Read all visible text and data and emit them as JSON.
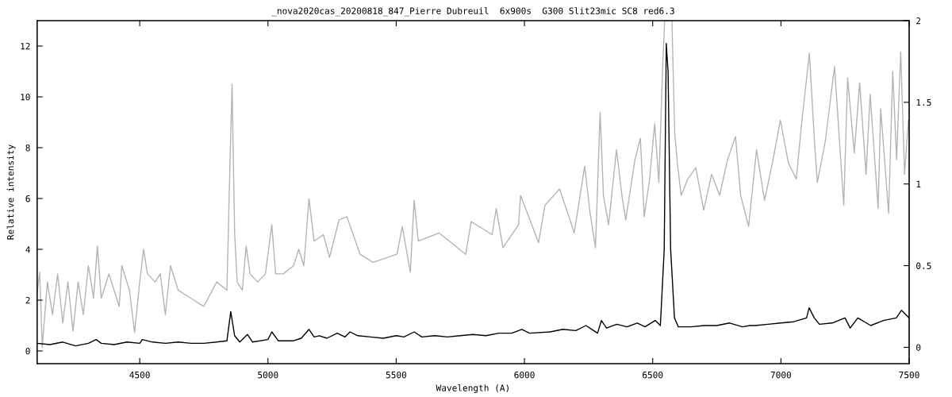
{
  "chart_data": {
    "type": "line",
    "title": "_nova2020cas_20200818_847_Pierre Dubreuil  6x900s  G300 Slit23mic SC8 red6.3",
    "xlabel": "Wavelength (A)",
    "ylabel": "Relative intensity",
    "xlim": [
      4100,
      7500
    ],
    "xticks": [
      4500,
      5000,
      5500,
      6000,
      6500,
      7000,
      7500
    ],
    "ylim": [
      -0.5,
      13
    ],
    "yticks": [
      0,
      2,
      4,
      6,
      8,
      10,
      12
    ],
    "y2lim": [
      -0.1,
      2
    ],
    "y2ticks": [
      0,
      0.5,
      1,
      1.5,
      2
    ],
    "grid": false,
    "marker": "none",
    "line_style": "solid",
    "series": [
      {
        "color": "#b4b4b4",
        "axis": "y2",
        "x": [
          4100,
          4110,
          4120,
          4140,
          4160,
          4180,
          4200,
          4220,
          4240,
          4260,
          4280,
          4300,
          4320,
          4335,
          4350,
          4380,
          4400,
          4420,
          4430,
          4460,
          4480,
          4500,
          4515,
          4530,
          4560,
          4580,
          4600,
          4620,
          4650,
          4700,
          4750,
          4800,
          4840,
          4850,
          4860,
          4870,
          4880,
          4900,
          4915,
          4930,
          4960,
          4990,
          5015,
          5030,
          5060,
          5100,
          5120,
          5140,
          5160,
          5180,
          5216,
          5240,
          5277,
          5308,
          5359,
          5410,
          5503,
          5524,
          5555,
          5570,
          5586,
          5668,
          5771,
          5792,
          5874,
          5890,
          5916,
          5977,
          5985,
          6029,
          6055,
          6080,
          6137,
          6184,
          6194,
          6235,
          6256,
          6277,
          6295,
          6308,
          6328,
          6359,
          6380,
          6395,
          6431,
          6452,
          6467,
          6488,
          6508,
          6524,
          6539,
          6547,
          6565,
          6575,
          6586,
          6596,
          6611,
          6637,
          6668,
          6699,
          6730,
          6761,
          6792,
          6823,
          6843,
          6874,
          6905,
          6936,
          6967,
          6998,
          7029,
          7060,
          7080,
          7111,
          7132,
          7142,
          7173,
          7209,
          7245,
          7260,
          7286,
          7307,
          7332,
          7348,
          7379,
          7389,
          7420,
          7436,
          7451,
          7467,
          7482,
          7497
        ],
        "values": [
          0.33,
          0.46,
          0.0,
          0.4,
          0.2,
          0.45,
          0.15,
          0.4,
          0.1,
          0.4,
          0.2,
          0.5,
          0.3,
          0.62,
          0.3,
          0.45,
          0.35,
          0.25,
          0.5,
          0.35,
          0.09,
          0.4,
          0.6,
          0.45,
          0.4,
          0.45,
          0.2,
          0.5,
          0.35,
          0.3,
          0.25,
          0.4,
          0.35,
          1.0,
          1.61,
          0.7,
          0.4,
          0.35,
          0.62,
          0.45,
          0.4,
          0.45,
          0.75,
          0.45,
          0.45,
          0.5,
          0.6,
          0.5,
          0.91,
          0.65,
          0.69,
          0.55,
          0.78,
          0.8,
          0.57,
          0.52,
          0.57,
          0.74,
          0.46,
          0.9,
          0.65,
          0.7,
          0.57,
          0.77,
          0.69,
          0.85,
          0.61,
          0.75,
          0.93,
          0.75,
          0.64,
          0.87,
          0.97,
          0.75,
          0.7,
          1.11,
          0.82,
          0.61,
          1.44,
          0.93,
          0.75,
          1.21,
          0.93,
          0.78,
          1.15,
          1.28,
          0.8,
          1.03,
          1.37,
          1.01,
          1.72,
          2.0,
          2.0,
          2.0,
          1.31,
          1.13,
          0.93,
          1.03,
          1.1,
          0.84,
          1.06,
          0.93,
          1.15,
          1.29,
          0.93,
          0.74,
          1.21,
          0.9,
          1.13,
          1.39,
          1.13,
          1.03,
          1.36,
          1.8,
          1.23,
          1.01,
          1.26,
          1.72,
          0.87,
          1.65,
          1.19,
          1.62,
          1.06,
          1.55,
          0.85,
          1.46,
          0.82,
          1.69,
          1.15,
          1.81,
          1.06,
          1.39
        ]
      },
      {
        "color": "#000000",
        "x": [
          4100,
          4150,
          4200,
          4250,
          4300,
          4330,
          4350,
          4400,
          4450,
          4500,
          4510,
          4550,
          4600,
          4650,
          4700,
          4750,
          4800,
          4840,
          4855,
          4870,
          4890,
          4920,
          4940,
          5000,
          5015,
          5040,
          5100,
          5130,
          5160,
          5180,
          5200,
          5230,
          5270,
          5300,
          5320,
          5350,
          5400,
          5450,
          5500,
          5530,
          5570,
          5600,
          5650,
          5700,
          5750,
          5800,
          5850,
          5900,
          5950,
          5990,
          6020,
          6100,
          6150,
          6200,
          6240,
          6270,
          6285,
          6300,
          6320,
          6360,
          6400,
          6440,
          6470,
          6510,
          6530,
          6545,
          6553,
          6560,
          6570,
          6585,
          6600,
          6650,
          6700,
          6750,
          6800,
          6850,
          6880,
          6900,
          6950,
          7000,
          7050,
          7100,
          7110,
          7130,
          7150,
          7200,
          7250,
          7270,
          7300,
          7350,
          7400,
          7450,
          7470,
          7490,
          7500
        ],
        "values": [
          0.3,
          0.25,
          0.35,
          0.2,
          0.3,
          0.45,
          0.3,
          0.25,
          0.35,
          0.3,
          0.45,
          0.35,
          0.3,
          0.35,
          0.3,
          0.3,
          0.35,
          0.4,
          1.55,
          0.6,
          0.35,
          0.65,
          0.35,
          0.45,
          0.75,
          0.4,
          0.4,
          0.5,
          0.85,
          0.55,
          0.6,
          0.5,
          0.7,
          0.55,
          0.75,
          0.6,
          0.55,
          0.5,
          0.6,
          0.55,
          0.75,
          0.55,
          0.6,
          0.55,
          0.6,
          0.65,
          0.6,
          0.7,
          0.7,
          0.85,
          0.7,
          0.75,
          0.85,
          0.8,
          1.0,
          0.8,
          0.7,
          1.2,
          0.9,
          1.05,
          0.95,
          1.1,
          0.95,
          1.2,
          1.0,
          4,
          12.1,
          11,
          4,
          1.3,
          0.95,
          0.95,
          1.0,
          1.0,
          1.1,
          0.95,
          1.0,
          1.0,
          1.05,
          1.1,
          1.15,
          1.3,
          1.7,
          1.3,
          1.05,
          1.1,
          1.3,
          0.9,
          1.3,
          1.0,
          1.2,
          1.3,
          1.6,
          1.4,
          1.3
        ]
      }
    ]
  }
}
